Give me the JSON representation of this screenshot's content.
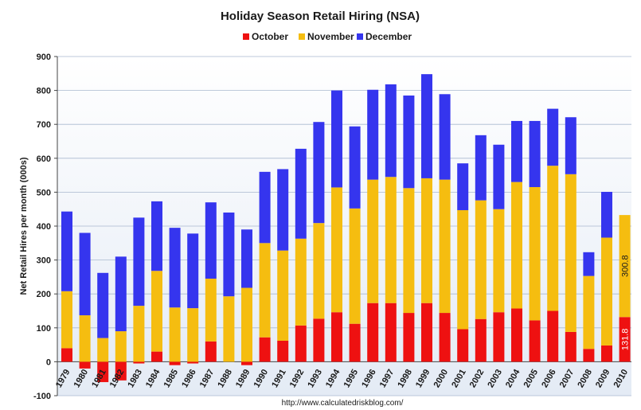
{
  "chart_data": {
    "type": "bar",
    "stacked": true,
    "title": "Holiday Season Retail Hiring (NSA)",
    "ylabel": "Net Retail Hires per month (000s)",
    "xlabel": "",
    "ylim": [
      -100,
      900
    ],
    "yticks": [
      -100,
      0,
      100,
      200,
      300,
      400,
      500,
      600,
      700,
      800,
      900
    ],
    "grid": true,
    "legend_position": "top",
    "source": "http://www.calculatedriskblog.com/",
    "categories": [
      "1979",
      "1980",
      "1981",
      "1982",
      "1983",
      "1984",
      "1985",
      "1986",
      "1987",
      "1988",
      "1989",
      "1990",
      "1991",
      "1992",
      "1993",
      "1994",
      "1995",
      "1996",
      "1997",
      "1998",
      "1999",
      "2000",
      "2001",
      "2002",
      "2003",
      "2004",
      "2005",
      "2006",
      "2007",
      "2008",
      "2009",
      "2010"
    ],
    "series": [
      {
        "name": "October",
        "color": "#ee1111",
        "values": [
          40,
          -20,
          -60,
          -55,
          -5,
          30,
          -10,
          -5,
          60,
          0,
          -10,
          72,
          62,
          107,
          127,
          146,
          112,
          173,
          173,
          144,
          173,
          144,
          96,
          126,
          146,
          157,
          122,
          150,
          88,
          38,
          48,
          131.8
        ]
      },
      {
        "name": "November",
        "color": "#f5bd10",
        "values": [
          168,
          137,
          70,
          90,
          165,
          238,
          160,
          158,
          185,
          193,
          218,
          278,
          266,
          256,
          282,
          368,
          340,
          364,
          372,
          368,
          368,
          393,
          351,
          350,
          304,
          373,
          393,
          428,
          465,
          215,
          318,
          300.8
        ]
      },
      {
        "name": "December",
        "color": "#3535ee",
        "values": [
          235,
          243,
          192,
          220,
          260,
          205,
          235,
          220,
          225,
          247,
          172,
          210,
          240,
          265,
          298,
          286,
          242,
          265,
          273,
          273,
          307,
          252,
          138,
          192,
          190,
          180,
          195,
          168,
          168,
          70,
          135,
          0
        ]
      }
    ],
    "data_labels": [
      {
        "category": "2010",
        "series": "October",
        "text": "131.8"
      },
      {
        "category": "2010",
        "series": "November",
        "text": "300.8"
      }
    ]
  }
}
